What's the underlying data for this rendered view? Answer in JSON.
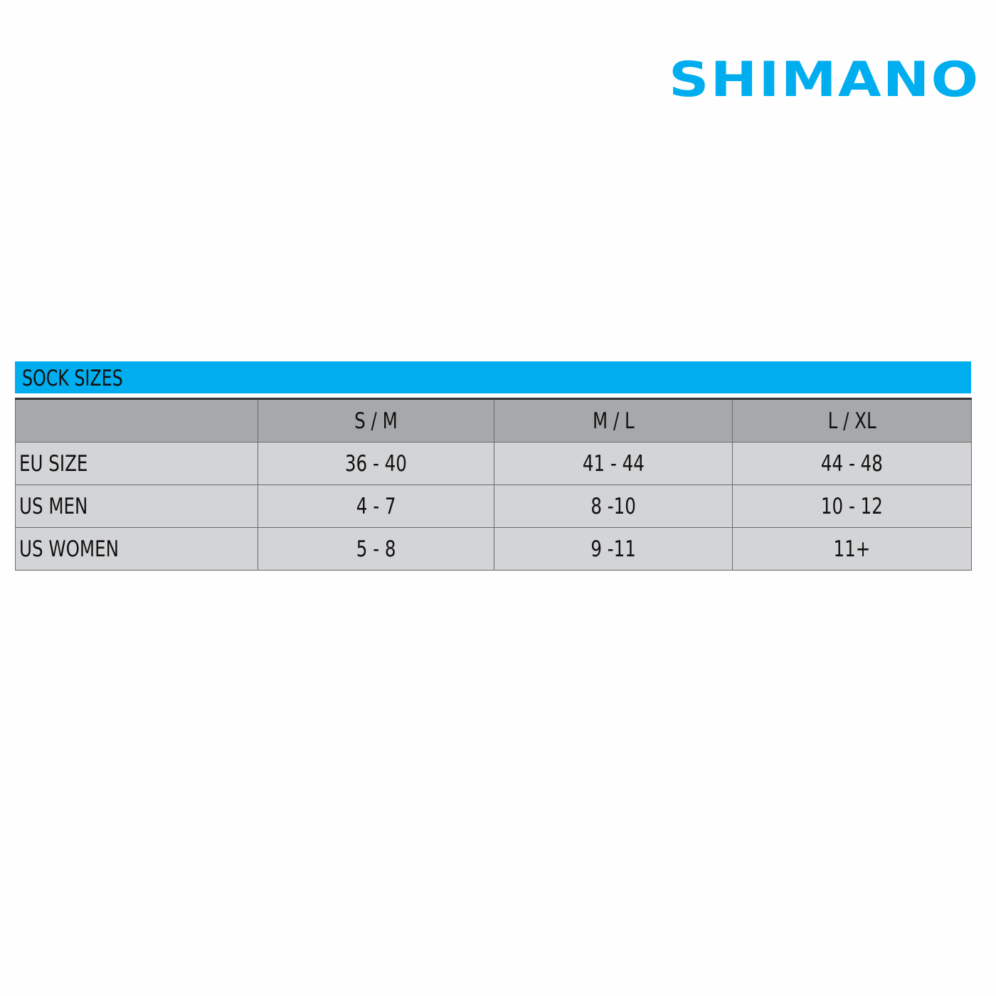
{
  "brand": {
    "logo_text": "SHIMANO",
    "color": "#00aeef"
  },
  "table": {
    "title": "SOCK SIZES",
    "header_color": "#a7a8aa",
    "row_color": "#d3d4d6",
    "columns": [
      "",
      "S / M",
      "M / L",
      "L / XL"
    ],
    "rows": [
      {
        "label": "EU SIZE",
        "values": [
          "36 - 40",
          "41 - 44",
          "44 - 48"
        ]
      },
      {
        "label": "US MEN",
        "values": [
          "4 - 7",
          "8 -10",
          "10 - 12"
        ]
      },
      {
        "label": "US WOMEN",
        "values": [
          "5 - 8",
          "9 -11",
          "11+"
        ]
      }
    ]
  }
}
